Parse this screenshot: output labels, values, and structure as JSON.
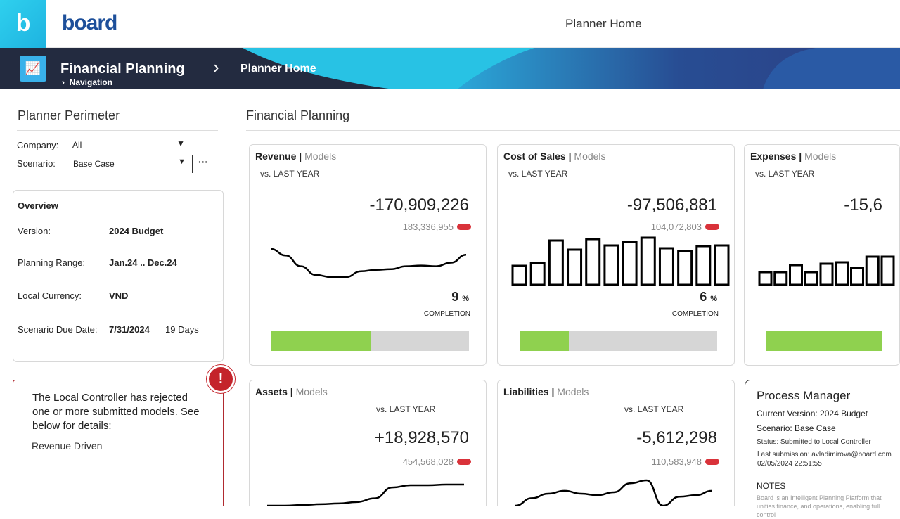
{
  "header": {
    "logo_letter": "b",
    "brand": "board",
    "page_title": "Planner Home"
  },
  "nav": {
    "app": "Financial Planning",
    "sub": "Navigation",
    "current": "Planner Home"
  },
  "perimeter": {
    "title": "Planner Perimeter",
    "company_label": "Company:",
    "company_value": "All",
    "scenario_label": "Scenario:",
    "scenario_value": "Base Case",
    "more": "···"
  },
  "overview": {
    "title": "Overview",
    "rows": [
      {
        "label": "Version:",
        "value": "2024 Budget"
      },
      {
        "label": "Planning Range:",
        "value": "Jan.24 .. Dec.24"
      },
      {
        "label": "Local Currency:",
        "value": "VND"
      },
      {
        "label": "Scenario Due Date:",
        "value": "7/31/2024",
        "extra": "19 Days"
      }
    ]
  },
  "alert": {
    "icon": "!",
    "message": "The Local Controller has rejected one or more submitted models. See below for details:",
    "item": "Revenue Driven"
  },
  "main": {
    "title": "Financial Planning"
  },
  "kpis": [
    {
      "title": "Revenue",
      "models": "Models",
      "vs": "vs. LAST YEAR",
      "value": "-170,909,226",
      "prior": "183,336,955",
      "pct": "9",
      "pct_sym": "%",
      "completion": "COMPLETION",
      "bar_fill": 0.5,
      "chart": "line",
      "series": [
        39,
        30,
        15,
        3,
        0,
        0,
        8,
        10,
        11,
        15,
        16,
        15,
        20,
        31
      ]
    },
    {
      "title": "Cost of Sales",
      "models": "Models",
      "vs": "vs. LAST YEAR",
      "value": "-97,506,881",
      "prior": "104,072,803",
      "pct": "6",
      "pct_sym": "%",
      "completion": "COMPLETION",
      "bar_fill": 0.25,
      "chart": "bar",
      "series": [
        27,
        31,
        63,
        50,
        65,
        56,
        61,
        67,
        52,
        48,
        55,
        56
      ]
    },
    {
      "title": "Expenses",
      "models": "Models",
      "vs": "vs. LAST YEAR",
      "value": "-15,6",
      "prior": "",
      "pct": "",
      "pct_sym": "",
      "completion": "",
      "bar_fill": 1,
      "chart": "bar",
      "series": [
        18,
        18,
        28,
        18,
        30,
        32,
        24,
        40,
        40
      ]
    },
    {
      "title": "Assets",
      "models": "Models",
      "vs": "vs. LAST YEAR",
      "value": "+18,928,570",
      "prior": "454,568,028",
      "chart": "line",
      "series": [
        0,
        0,
        1,
        2,
        3,
        5,
        10,
        25,
        28,
        28,
        29,
        29
      ]
    },
    {
      "title": "Liabilities",
      "models": "Models",
      "vs": "vs. LAST YEAR",
      "value": "-5,612,298",
      "prior": "110,583,948",
      "chart": "line",
      "series": [
        0,
        10,
        16,
        20,
        16,
        14,
        18,
        30,
        34,
        0,
        12,
        14,
        20
      ]
    }
  ],
  "process": {
    "title": "Process Manager",
    "version": "Current Version: 2024 Budget",
    "scenario": "Scenario: Base Case",
    "status": "Status:  Submitted to Local Controller",
    "last": "Last submission: avladimirova@board.com",
    "date": "02/05/2024 22:51:55",
    "notes_title": "NOTES",
    "notes": "Board is an Intelligent Planning Platform that unifies finance, and operations, enabling full control"
  },
  "colors": {
    "accent": "#39b1ea",
    "green": "#8fd14f",
    "red": "#d9323a",
    "navy": "#232b40"
  }
}
